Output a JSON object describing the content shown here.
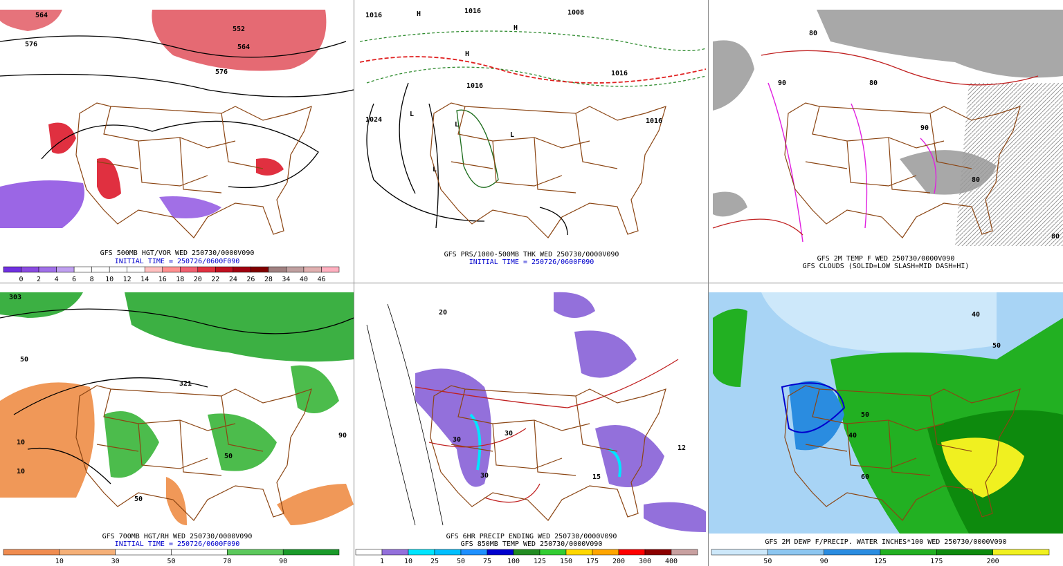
{
  "panels": [
    {
      "caption": [
        "GFS 500MB HGT/VOR WED 250730/0000V090",
        "INITIAL TIME = 250726/0600F090"
      ],
      "colorbar": {
        "labels": [
          0,
          2,
          4,
          6,
          8,
          10,
          12,
          14,
          16,
          18,
          20,
          22,
          24,
          26,
          28,
          34,
          40,
          46
        ],
        "colors": [
          "#7030e0",
          "#8a4be0",
          "#a070e8",
          "#c0a0f0",
          "#ffffff",
          "#ffffff",
          "#ffffff",
          "#ffffff",
          "#ffc0c0",
          "#ff9090",
          "#f06070",
          "#e03040",
          "#c01020",
          "#a00010",
          "#800000",
          "#a08080",
          "#c0a0a0",
          "#e0b0b0",
          "#ffb0c0"
        ]
      },
      "map_labels": [
        "564",
        "576",
        "552",
        "564",
        "576"
      ]
    },
    {
      "caption": [
        "GFS PRS/1000-500MB THK WED 250730/0000V090",
        "INITIAL TIME = 250726/0600F090"
      ],
      "map_labels": [
        "1016",
        "1016",
        "1008",
        "1024",
        "1016",
        "1016",
        "1016",
        "H",
        "H",
        "H",
        "L",
        "L",
        "L",
        "L"
      ]
    },
    {
      "caption": [
        "GFS 2M TEMP F WED 250730/0000V090",
        "GFS CLOUDS (SOLID=LOW SLASH=MID DASH=HI)"
      ],
      "map_labels": [
        "80",
        "80",
        "90",
        "90",
        "80",
        "80"
      ]
    },
    {
      "caption": [
        "GFS 700MB HGT/RH WED 250730/0000V090",
        "INITIAL TIME = 250726/0600F090"
      ],
      "colorbar": {
        "labels": [
          10,
          30,
          50,
          70,
          90
        ],
        "colors": [
          "#f08c50",
          "#f5b078",
          "#ffffff",
          "#ffffff",
          "#5cc85c",
          "#1a9a2a"
        ]
      },
      "map_labels": [
        "303",
        "50",
        "10",
        "321",
        "50",
        "10",
        "50",
        "90"
      ]
    },
    {
      "caption": [
        "GFS 6HR PRECIP ENDING WED 250730/0000V090",
        "GFS 850MB TEMP WED 250730/0000V090"
      ],
      "colorbar": {
        "labels": [
          1,
          10,
          25,
          50,
          75,
          100,
          125,
          150,
          175,
          200,
          300,
          400
        ],
        "colors": [
          "#ffffff",
          "#9370db",
          "#00e5ff",
          "#00bfff",
          "#1e90ff",
          "#0000cd",
          "#228b22",
          "#32cd32",
          "#ffd700",
          "#ffa500",
          "#ff0000",
          "#8b0000",
          "#c8a0a0"
        ]
      },
      "map_labels": [
        "20",
        "30",
        "30",
        "30",
        "12",
        "15"
      ]
    },
    {
      "caption": [
        "GFS 2M DEWP F/PRECIP. WATER INCHES*100 WED 250730/0000V090"
      ],
      "colorbar": {
        "labels": [
          50,
          90,
          125,
          175,
          200
        ],
        "colors": [
          "#cde8fa",
          "#8cc6f0",
          "#2a8ce0",
          "#22b022",
          "#0d8a0d",
          "#f0f020"
        ]
      },
      "map_labels": [
        "40",
        "50",
        "40",
        "60",
        "50"
      ]
    }
  ]
}
